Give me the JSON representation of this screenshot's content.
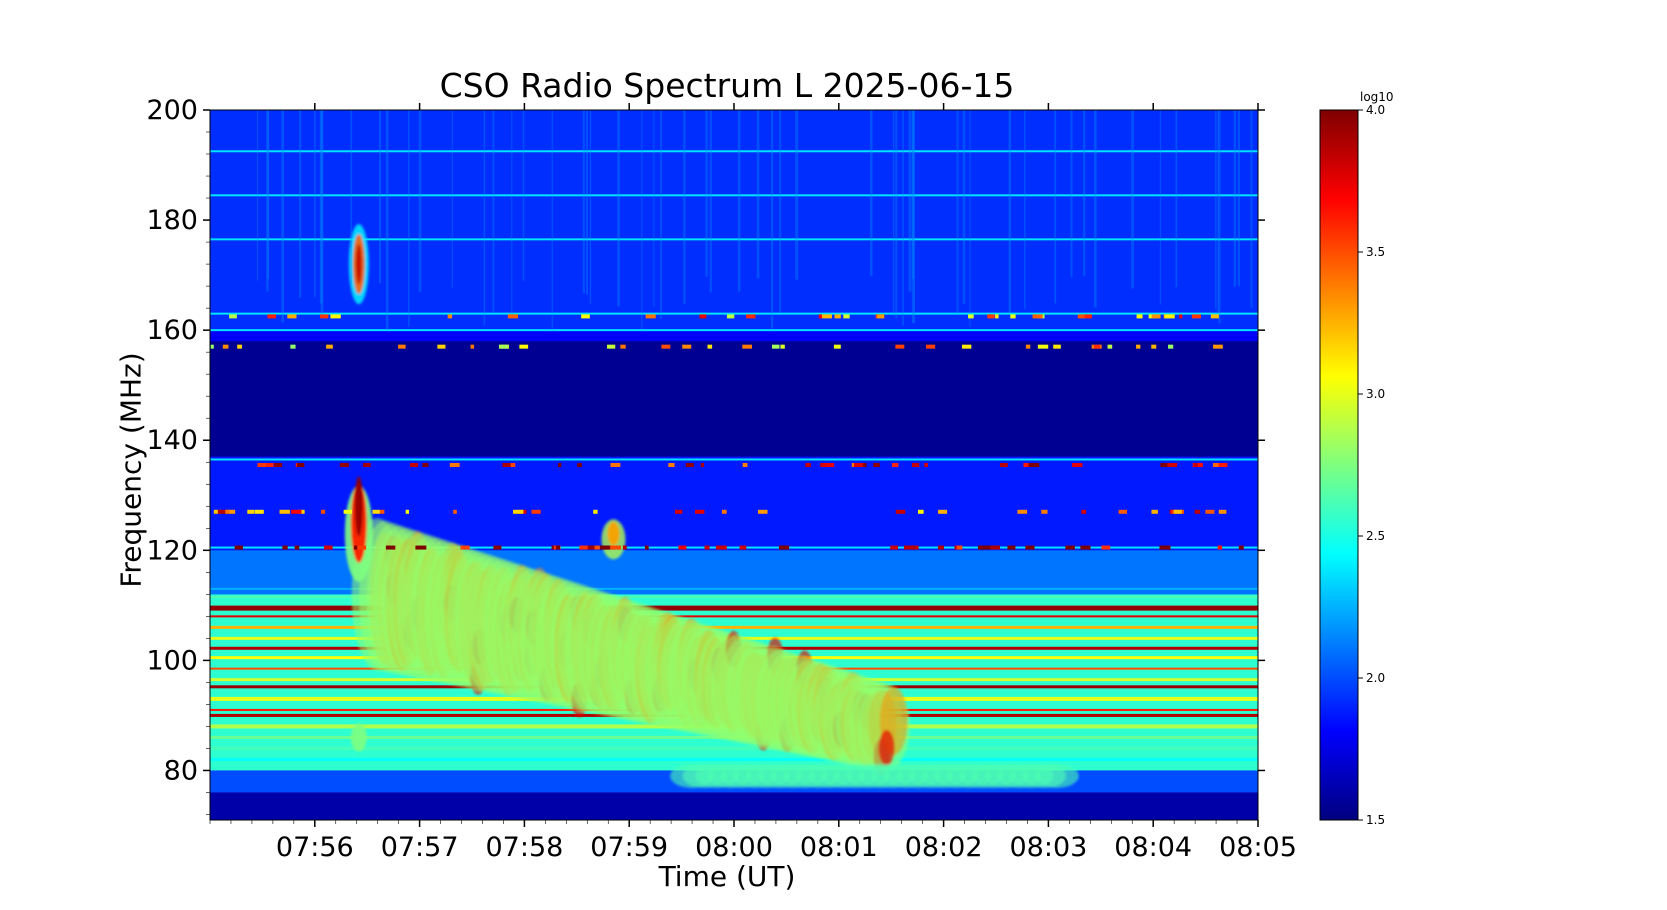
{
  "chart_data": {
    "type": "heatmap",
    "title": "CSO Radio Spectrum L 2025-06-15",
    "xlabel": "Time (UT)",
    "ylabel": "Frequency (MHz)",
    "x_ticks": [
      "07:56",
      "07:57",
      "07:58",
      "07:59",
      "08:00",
      "08:01",
      "08:02",
      "08:03",
      "08:04",
      "08:05"
    ],
    "x_range": [
      "07:55:00",
      "08:05:00"
    ],
    "y_ticks": [
      80,
      100,
      120,
      140,
      160,
      180,
      200
    ],
    "ylim": [
      71,
      200
    ],
    "colorbar": {
      "label": "log10",
      "ticks": [
        "1.5",
        "2.0",
        "2.5",
        "3.0",
        "3.5",
        "4.0"
      ],
      "range": [
        1.5,
        4.0
      ],
      "colormap": "jet"
    },
    "colors": {
      "jet": [
        "#00007f",
        "#0000ff",
        "#007fff",
        "#00ffff",
        "#7fff7f",
        "#ffff00",
        "#ff7f00",
        "#ff0000",
        "#7f0000"
      ]
    }
  }
}
